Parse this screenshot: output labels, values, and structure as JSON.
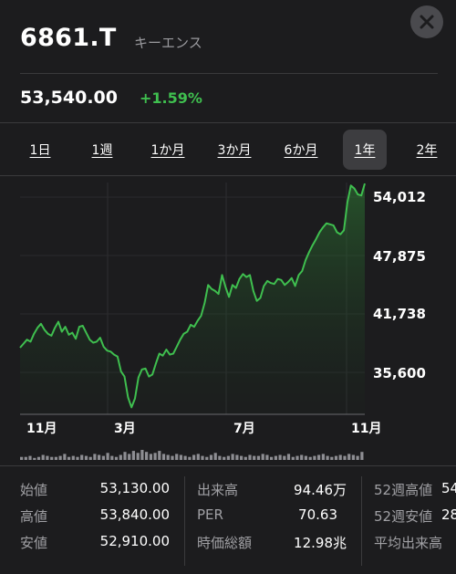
{
  "header": {
    "ticker": "6861.T",
    "company": "キーエンス",
    "close_icon": "close-icon"
  },
  "quote": {
    "price": "53,540.00",
    "change": "+1.59%"
  },
  "tabs": [
    "1日",
    "1週",
    "1か月",
    "3か月",
    "6か月",
    "1年",
    "2年"
  ],
  "active_tab": "1年",
  "colors": {
    "accent_green": "#3fbf4f",
    "background": "#1c1c1e"
  },
  "chart_data": {
    "type": "area",
    "y_ticks": [
      "54,012",
      "47,875",
      "41,738",
      "35,600"
    ],
    "x_ticks": [
      "11月",
      "3月",
      "7月",
      "11月"
    ],
    "series_points": [
      [
        0,
        38800
      ],
      [
        2,
        39200
      ],
      [
        4,
        39600
      ],
      [
        6,
        39400
      ],
      [
        8,
        40200
      ],
      [
        10,
        40800
      ],
      [
        12,
        41200
      ],
      [
        14,
        40600
      ],
      [
        16,
        40200
      ],
      [
        18,
        40000
      ],
      [
        20,
        40800
      ],
      [
        22,
        41400
      ],
      [
        24,
        40400
      ],
      [
        26,
        40900
      ],
      [
        28,
        40100
      ],
      [
        30,
        40300
      ],
      [
        32,
        39700
      ],
      [
        34,
        40900
      ],
      [
        36,
        41000
      ],
      [
        38,
        40300
      ],
      [
        40,
        39600
      ],
      [
        42,
        39300
      ],
      [
        44,
        39400
      ],
      [
        46,
        39800
      ],
      [
        48,
        38900
      ],
      [
        50,
        38500
      ],
      [
        52,
        38400
      ],
      [
        54,
        38100
      ],
      [
        56,
        37900
      ],
      [
        58,
        36400
      ],
      [
        60,
        35900
      ],
      [
        62,
        33800
      ],
      [
        64,
        32800
      ],
      [
        66,
        33700
      ],
      [
        68,
        35800
      ],
      [
        70,
        36600
      ],
      [
        72,
        36700
      ],
      [
        74,
        35900
      ],
      [
        76,
        36100
      ],
      [
        78,
        37200
      ],
      [
        80,
        38200
      ],
      [
        82,
        38000
      ],
      [
        84,
        38600
      ],
      [
        86,
        38100
      ],
      [
        88,
        38200
      ],
      [
        90,
        38900
      ],
      [
        92,
        39600
      ],
      [
        94,
        40200
      ],
      [
        96,
        40400
      ],
      [
        98,
        41100
      ],
      [
        100,
        40900
      ],
      [
        102,
        41500
      ],
      [
        104,
        42000
      ],
      [
        106,
        43300
      ],
      [
        108,
        45100
      ],
      [
        110,
        44700
      ],
      [
        112,
        44500
      ],
      [
        114,
        44200
      ],
      [
        116,
        46100
      ],
      [
        118,
        44900
      ],
      [
        120,
        43900
      ],
      [
        122,
        45100
      ],
      [
        124,
        44800
      ],
      [
        126,
        45700
      ],
      [
        128,
        46200
      ],
      [
        130,
        45900
      ],
      [
        132,
        46100
      ],
      [
        134,
        44500
      ],
      [
        136,
        43500
      ],
      [
        138,
        43800
      ],
      [
        140,
        45000
      ],
      [
        142,
        45500
      ],
      [
        144,
        45300
      ],
      [
        146,
        45200
      ],
      [
        148,
        45700
      ],
      [
        150,
        45600
      ],
      [
        152,
        45100
      ],
      [
        154,
        45400
      ],
      [
        156,
        45800
      ],
      [
        158,
        45000
      ],
      [
        160,
        46100
      ],
      [
        162,
        46500
      ],
      [
        164,
        47600
      ],
      [
        166,
        48400
      ],
      [
        168,
        49100
      ],
      [
        170,
        49700
      ],
      [
        172,
        50400
      ],
      [
        174,
        50900
      ],
      [
        176,
        51300
      ],
      [
        178,
        51200
      ],
      [
        180,
        51100
      ],
      [
        182,
        50400
      ],
      [
        184,
        50200
      ],
      [
        186,
        50600
      ],
      [
        188,
        53400
      ],
      [
        190,
        55100
      ],
      [
        192,
        54800
      ],
      [
        194,
        54200
      ],
      [
        196,
        54100
      ],
      [
        198,
        55300
      ]
    ],
    "volume_bars": [
      3,
      3,
      4,
      2,
      3,
      5,
      4,
      3,
      3,
      4,
      6,
      3,
      4,
      3,
      5,
      4,
      3,
      6,
      5,
      4,
      7,
      4,
      3,
      5,
      8,
      6,
      9,
      7,
      10,
      8,
      6,
      7,
      9,
      6,
      5,
      4,
      6,
      5,
      4,
      3,
      5,
      6,
      4,
      3,
      5,
      7,
      4,
      3,
      4,
      6,
      5,
      4,
      3,
      5,
      4,
      4,
      6,
      5,
      3,
      4,
      5,
      4,
      6,
      3,
      4,
      5,
      4,
      3,
      4,
      5,
      6,
      4,
      3,
      4,
      5,
      4,
      6,
      5,
      4,
      8
    ]
  },
  "stats": {
    "col1": [
      {
        "label": "始値",
        "value": "53,130.00"
      },
      {
        "label": "高値",
        "value": "53,840.00"
      },
      {
        "label": "安値",
        "value": "52,910.00"
      }
    ],
    "col2": [
      {
        "label": "出来高",
        "value": "94.46万"
      },
      {
        "label": "PER",
        "value": "70.63"
      },
      {
        "label": "時価総額",
        "value": "12.98兆"
      }
    ],
    "col3": [
      {
        "label": "52週高値",
        "value": "54"
      },
      {
        "label": "52週安値",
        "value": "28"
      },
      {
        "label": "平均出来高",
        "value": ""
      }
    ]
  }
}
